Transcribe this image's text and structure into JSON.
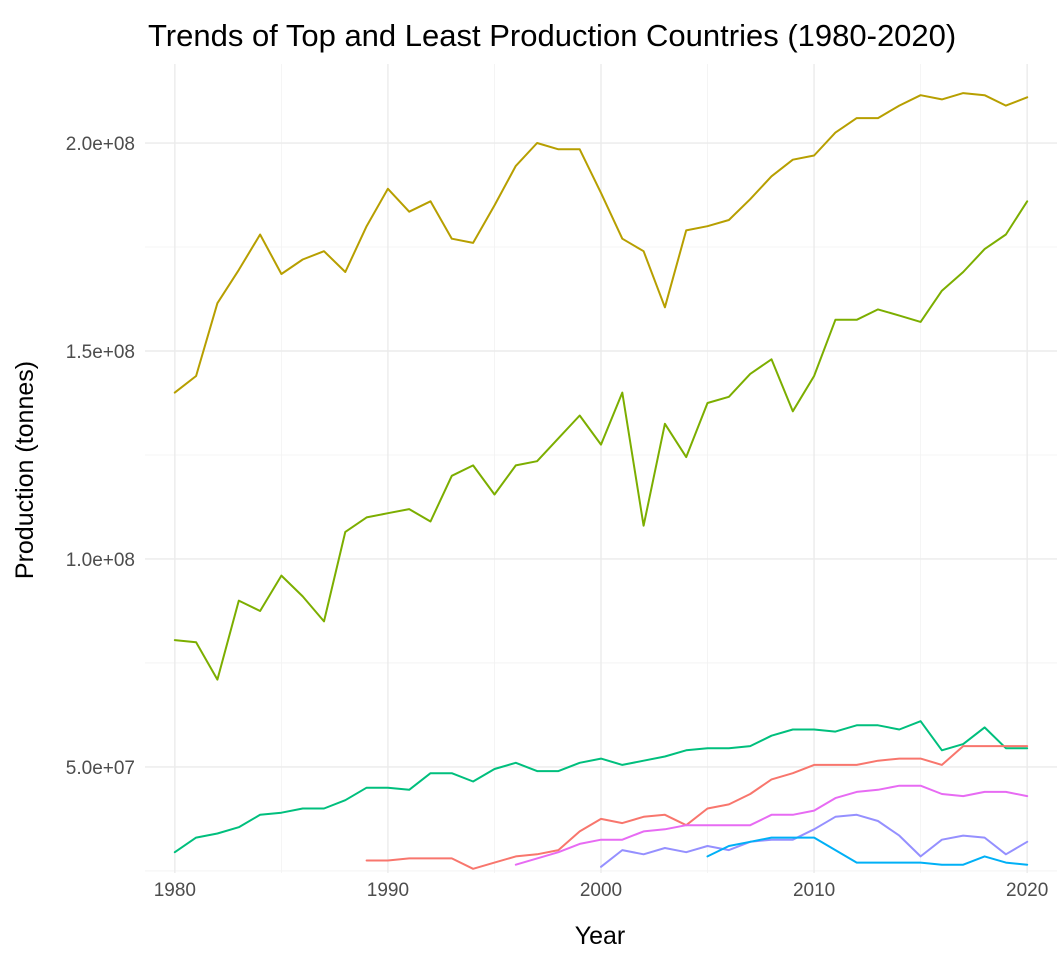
{
  "chart_data": {
    "type": "line",
    "title": "Trends of Top and Least Production Countries (1980-2020)",
    "xlabel": "Year",
    "ylabel": "Production (tonnes)",
    "xlim": [
      1978.6,
      2021.4
    ],
    "ylim": [
      24500000,
      219000000
    ],
    "x_ticks": [
      1980,
      1990,
      2000,
      2010,
      2020
    ],
    "x_tick_labels": [
      "1980",
      "1990",
      "2000",
      "2010",
      "2020"
    ],
    "y_ticks": [
      50000000,
      100000000,
      150000000,
      200000000
    ],
    "y_tick_labels": [
      "5.0e+07",
      "1.0e+08",
      "1.5e+08",
      "2.0e+08"
    ],
    "grid": true,
    "legend": "none",
    "series": [
      {
        "color": "#B79F00",
        "x": [
          1980,
          1981,
          1982,
          1983,
          1984,
          1985,
          1986,
          1987,
          1988,
          1989,
          1990,
          1991,
          1992,
          1993,
          1994,
          1995,
          1996,
          1997,
          1998,
          1999,
          2000,
          2001,
          2002,
          2003,
          2004,
          2005,
          2006,
          2007,
          2008,
          2009,
          2010,
          2011,
          2012,
          2013,
          2014,
          2015,
          2016,
          2017,
          2018,
          2019,
          2020
        ],
        "values": [
          140000000,
          144000000,
          161500000,
          169500000,
          178000000,
          168500000,
          172000000,
          174000000,
          169000000,
          180000000,
          189000000,
          183500000,
          186000000,
          177000000,
          176000000,
          185000000,
          194500000,
          200000000,
          198500000,
          198500000,
          188000000,
          177000000,
          174000000,
          160500000,
          179000000,
          180000000,
          181500000,
          186500000,
          192000000,
          196000000,
          197000000,
          202500000,
          206000000,
          206000000,
          209000000,
          211500000,
          210500000,
          212000000,
          211500000,
          209000000,
          211000000
        ]
      },
      {
        "color": "#7CAE00",
        "x": [
          1980,
          1981,
          1982,
          1983,
          1984,
          1985,
          1986,
          1987,
          1988,
          1989,
          1990,
          1991,
          1992,
          1993,
          1994,
          1995,
          1996,
          1997,
          1998,
          1999,
          2000,
          2001,
          2002,
          2003,
          2004,
          2005,
          2006,
          2007,
          2008,
          2009,
          2010,
          2011,
          2012,
          2013,
          2014,
          2015,
          2016,
          2017,
          2018,
          2019,
          2020
        ],
        "values": [
          80500000,
          80000000,
          71000000,
          90000000,
          87500000,
          96000000,
          91000000,
          85000000,
          106500000,
          110000000,
          111000000,
          112000000,
          109000000,
          120000000,
          122500000,
          115500000,
          122500000,
          123500000,
          129000000,
          134500000,
          127500000,
          140000000,
          108000000,
          132500000,
          124500000,
          137500000,
          139000000,
          144500000,
          148000000,
          135500000,
          144000000,
          157500000,
          157500000,
          160000000,
          158500000,
          157000000,
          164500000,
          169000000,
          174500000,
          178000000,
          186000000
        ]
      },
      {
        "color": "#00BF7D",
        "x": [
          1980,
          1981,
          1982,
          1983,
          1984,
          1985,
          1986,
          1987,
          1988,
          1989,
          1990,
          1991,
          1992,
          1993,
          1994,
          1995,
          1996,
          1997,
          1998,
          1999,
          2000,
          2001,
          2002,
          2003,
          2004,
          2005,
          2006,
          2007,
          2008,
          2009,
          2010,
          2011,
          2012,
          2013,
          2014,
          2015,
          2016,
          2017,
          2018,
          2019,
          2020
        ],
        "values": [
          29500000,
          33000000,
          34000000,
          35500000,
          38500000,
          39000000,
          40000000,
          40000000,
          42000000,
          45000000,
          45000000,
          44500000,
          48500000,
          48500000,
          46500000,
          49500000,
          51000000,
          49000000,
          49000000,
          51000000,
          52000000,
          50500000,
          51500000,
          52500000,
          54000000,
          54500000,
          54500000,
          55000000,
          57500000,
          59000000,
          59000000,
          58500000,
          60000000,
          60000000,
          59000000,
          61000000,
          54000000,
          55500000,
          59500000,
          54500000,
          54500000
        ]
      },
      {
        "color": "#F8766D",
        "x": [
          1989,
          1990,
          1991,
          1992,
          1993,
          1994,
          1995,
          1996,
          1997,
          1998,
          1999,
          2000,
          2001,
          2002,
          2003,
          2004,
          2005,
          2006,
          2007,
          2008,
          2009,
          2010,
          2011,
          2012,
          2013,
          2014,
          2015,
          2016,
          2017,
          2018,
          2019,
          2020
        ],
        "values": [
          27500000,
          27500000,
          28000000,
          28000000,
          28000000,
          25500000,
          27000000,
          28500000,
          29000000,
          30000000,
          34500000,
          37500000,
          36500000,
          38000000,
          38500000,
          36000000,
          40000000,
          41000000,
          43500000,
          47000000,
          48500000,
          50500000,
          50500000,
          50500000,
          51500000,
          52000000,
          52000000,
          50500000,
          55000000,
          55000000,
          55000000,
          55000000
        ]
      },
      {
        "color": "#E76BF3",
        "x": [
          1996,
          1997,
          1998,
          1999,
          2000,
          2001,
          2002,
          2003,
          2004,
          2005,
          2006,
          2007,
          2008,
          2009,
          2010,
          2011,
          2012,
          2013,
          2014,
          2015,
          2016,
          2017,
          2018,
          2019,
          2020
        ],
        "values": [
          26500000,
          28000000,
          29500000,
          31500000,
          32500000,
          32500000,
          34500000,
          35000000,
          36000000,
          36000000,
          36000000,
          36000000,
          38500000,
          38500000,
          39500000,
          42500000,
          44000000,
          44500000,
          45500000,
          45500000,
          43500000,
          43000000,
          44000000,
          44000000,
          43000000
        ]
      },
      {
        "color": "#9590FF",
        "x": [
          2000,
          2001,
          2002,
          2003,
          2004,
          2005,
          2006,
          2007,
          2008,
          2009,
          2010,
          2011,
          2012,
          2013,
          2014,
          2015,
          2016,
          2017,
          2018,
          2019,
          2020
        ],
        "values": [
          26000000,
          30000000,
          29000000,
          30500000,
          29500000,
          31000000,
          30000000,
          32000000,
          32500000,
          32500000,
          35000000,
          38000000,
          38500000,
          37000000,
          33500000,
          28500000,
          32500000,
          33500000,
          33000000,
          29000000,
          32000000
        ]
      },
      {
        "color": "#00B0F6",
        "x": [
          2005,
          2006,
          2007,
          2008,
          2009,
          2010,
          2011,
          2012,
          2013,
          2014,
          2015,
          2016,
          2017,
          2018,
          2019,
          2020
        ],
        "values": [
          28500000,
          31000000,
          32000000,
          33000000,
          33000000,
          33000000,
          30000000,
          27000000,
          27000000,
          27000000,
          27000000,
          26500000,
          26500000,
          28500000,
          27000000,
          26500000
        ]
      }
    ]
  }
}
